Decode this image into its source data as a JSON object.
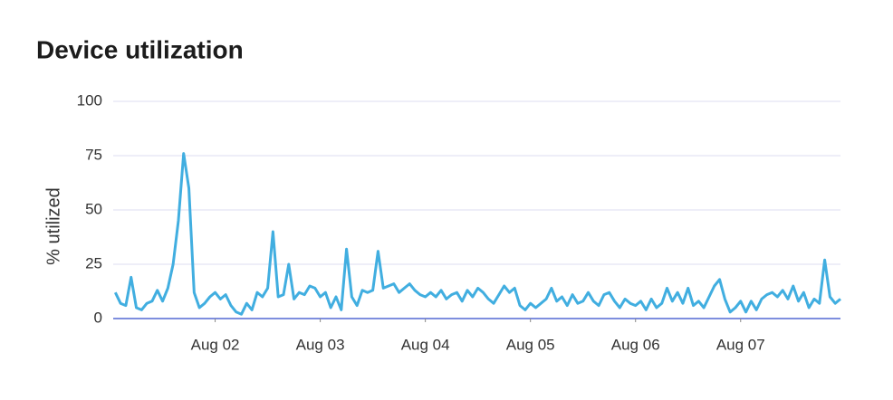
{
  "chart_data": {
    "type": "line",
    "title": "Device utilization",
    "ylabel": "% utilized",
    "xlim": [
      1.03,
      7.95
    ],
    "xticks": [
      {
        "value": 2,
        "label": "Aug 02"
      },
      {
        "value": 3,
        "label": "Aug 03"
      },
      {
        "value": 4,
        "label": "Aug 04"
      },
      {
        "value": 5,
        "label": "Aug 05"
      },
      {
        "value": 6,
        "label": "Aug 06"
      },
      {
        "value": 7,
        "label": "Aug 07"
      }
    ],
    "ylim": [
      0,
      100
    ],
    "yticks": [
      0,
      25,
      50,
      75,
      100
    ],
    "grid": true,
    "series": [
      {
        "color": "#41aee0",
        "x": [
          1.05,
          1.1,
          1.15,
          1.2,
          1.25,
          1.3,
          1.35,
          1.4,
          1.45,
          1.5,
          1.55,
          1.6,
          1.65,
          1.7,
          1.75,
          1.8,
          1.85,
          1.9,
          1.95,
          2.0,
          2.05,
          2.1,
          2.15,
          2.2,
          2.25,
          2.3,
          2.35,
          2.4,
          2.45,
          2.5,
          2.55,
          2.6,
          2.65,
          2.7,
          2.75,
          2.8,
          2.85,
          2.9,
          2.95,
          3.0,
          3.05,
          3.1,
          3.15,
          3.2,
          3.25,
          3.3,
          3.35,
          3.4,
          3.45,
          3.5,
          3.55,
          3.6,
          3.65,
          3.7,
          3.75,
          3.8,
          3.85,
          3.9,
          3.95,
          4.0,
          4.05,
          4.1,
          4.15,
          4.2,
          4.25,
          4.3,
          4.35,
          4.4,
          4.45,
          4.5,
          4.55,
          4.6,
          4.65,
          4.7,
          4.75,
          4.8,
          4.85,
          4.9,
          4.95,
          5.0,
          5.05,
          5.1,
          5.15,
          5.2,
          5.25,
          5.3,
          5.35,
          5.4,
          5.45,
          5.5,
          5.55,
          5.6,
          5.65,
          5.7,
          5.75,
          5.8,
          5.85,
          5.9,
          5.95,
          6.0,
          6.05,
          6.1,
          6.15,
          6.2,
          6.25,
          6.3,
          6.35,
          6.4,
          6.45,
          6.5,
          6.55,
          6.6,
          6.65,
          6.7,
          6.75,
          6.8,
          6.85,
          6.9,
          6.95,
          7.0,
          7.05,
          7.1,
          7.15,
          7.2,
          7.25,
          7.3,
          7.35,
          7.4,
          7.45,
          7.5,
          7.55,
          7.6,
          7.65,
          7.7,
          7.75,
          7.8,
          7.85,
          7.9,
          7.95
        ],
        "values": [
          12,
          7,
          6,
          19,
          5,
          4,
          7,
          8,
          13,
          8,
          14,
          25,
          45,
          76,
          60,
          12,
          5,
          7,
          10,
          12,
          9,
          11,
          6,
          3,
          2,
          7,
          4,
          12,
          10,
          14,
          40,
          10,
          11,
          25,
          9,
          12,
          11,
          15,
          14,
          10,
          12,
          5,
          10,
          4,
          32,
          10,
          6,
          13,
          12,
          13,
          31,
          14,
          15,
          16,
          12,
          14,
          16,
          13,
          11,
          10,
          12,
          10,
          13,
          9,
          11,
          12,
          8,
          13,
          10,
          14,
          12,
          9,
          7,
          11,
          15,
          12,
          14,
          6,
          4,
          7,
          5,
          7,
          9,
          14,
          8,
          10,
          6,
          11,
          7,
          8,
          12,
          8,
          6,
          11,
          12,
          8,
          5,
          9,
          7,
          6,
          8,
          4,
          9,
          5,
          7,
          14,
          8,
          12,
          7,
          14,
          6,
          8,
          5,
          10,
          15,
          18,
          9,
          3,
          5,
          8,
          3,
          8,
          4,
          9,
          11,
          12,
          10,
          13,
          9,
          15,
          8,
          12,
          5,
          9,
          7,
          27,
          10,
          7,
          9
        ]
      }
    ]
  }
}
